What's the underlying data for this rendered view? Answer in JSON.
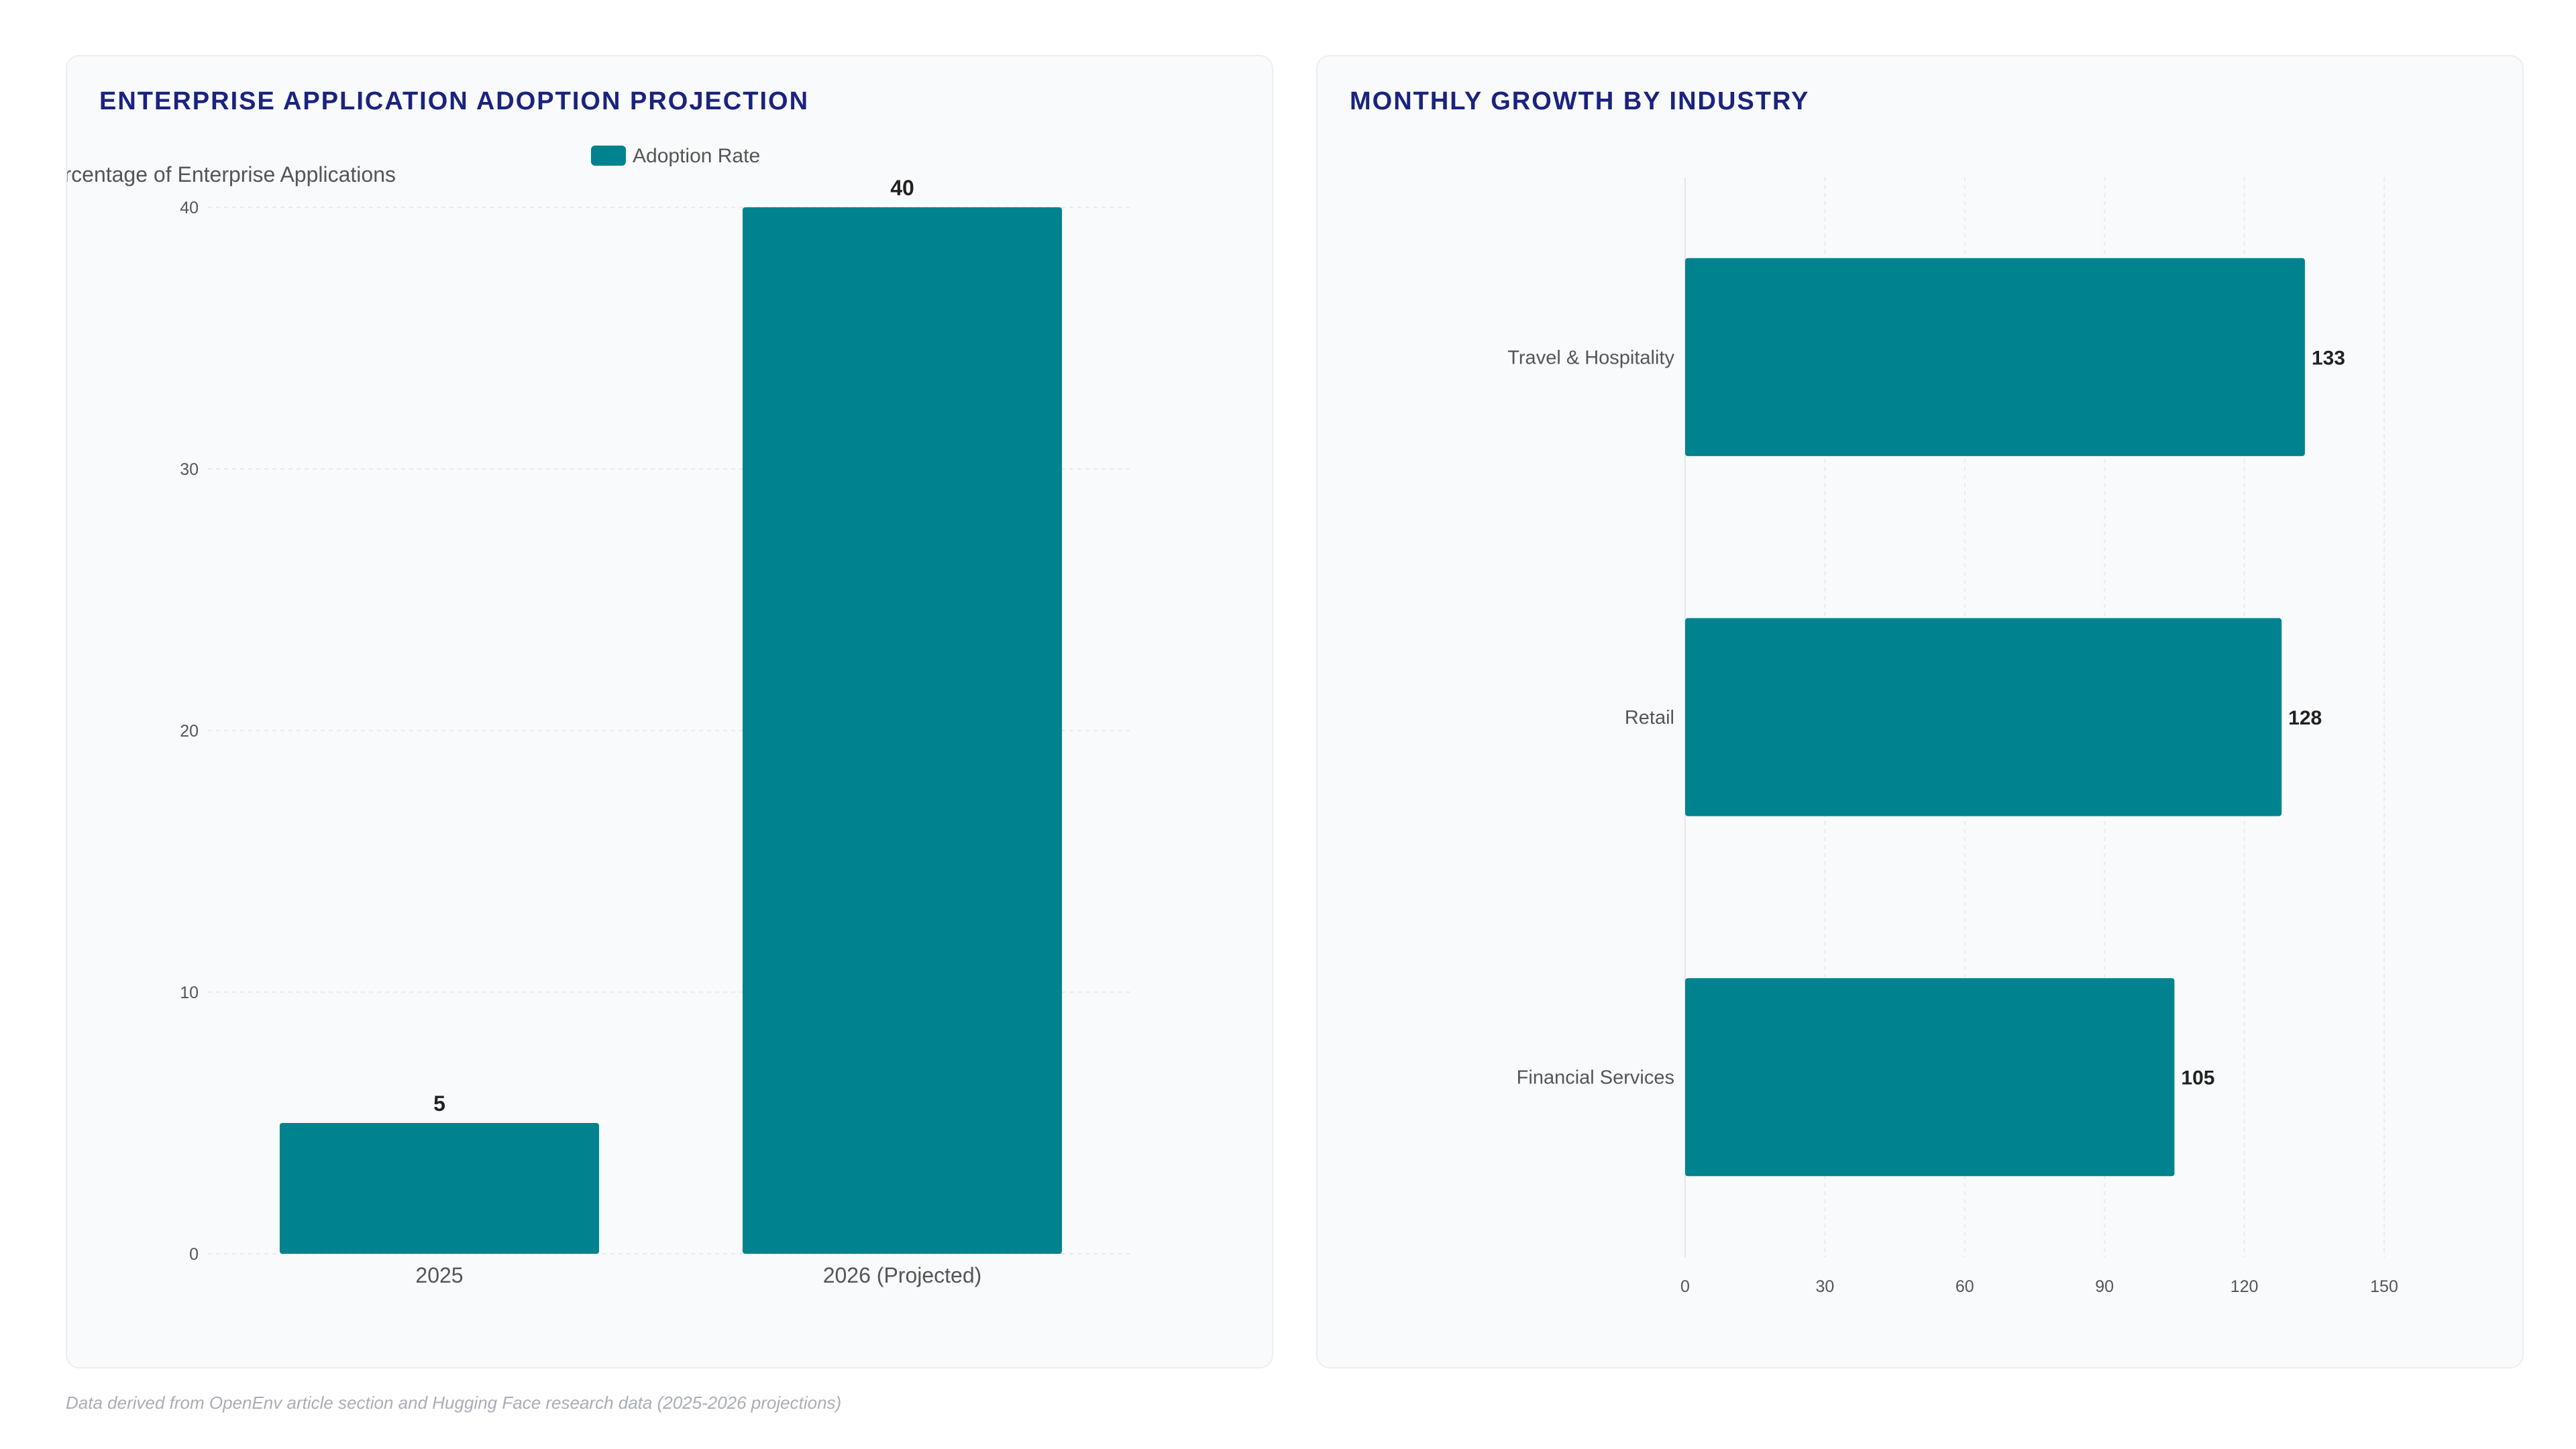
{
  "chart_data": [
    {
      "type": "bar",
      "title": "ENTERPRISE APPLICATION ADOPTION PROJECTION",
      "ylabel": "Percentage of Enterprise Applications",
      "categories": [
        "2025",
        "2026 (Projected)"
      ],
      "series": [
        {
          "name": "Adoption Rate",
          "values": [
            5,
            40
          ]
        }
      ],
      "ylim": [
        0,
        40
      ],
      "yticks": [
        0,
        10,
        20,
        30,
        40
      ],
      "data_labels": true,
      "legend": "top",
      "grid": true
    },
    {
      "type": "bar",
      "orientation": "horizontal",
      "title": "MONTHLY GROWTH BY INDUSTRY",
      "categories": [
        "Travel & Hospitality",
        "Retail",
        "Financial Services"
      ],
      "values": [
        133,
        128,
        105
      ],
      "xlim": [
        0,
        150
      ],
      "xticks": [
        0,
        30,
        60,
        90,
        120,
        150
      ],
      "data_labels": true,
      "grid": true
    }
  ],
  "colors": {
    "bar": "#00838f",
    "title": "#1a237e",
    "grid": "#e8ebef",
    "tick_text": "#555555",
    "data_label": "#222222"
  },
  "footnote": "Data derived from OpenEnv article section and Hugging Face research data (2025-2026 projections)"
}
